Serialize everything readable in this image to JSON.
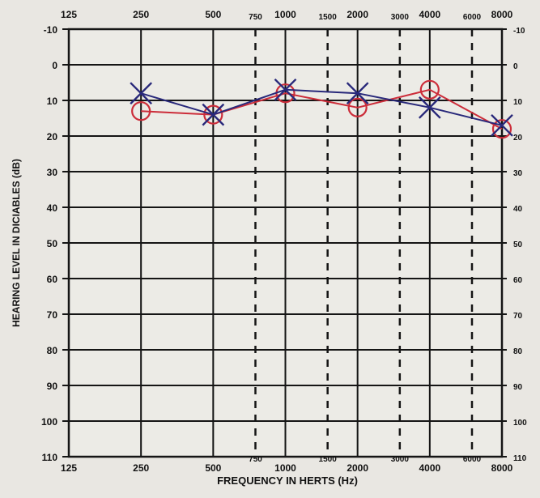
{
  "chart_data": {
    "type": "line",
    "title": "",
    "xlabel": "FREQUENCY IN HERTS (Hz)",
    "ylabel": "HEARING LEVEL IN DICIABLES (dB)",
    "x_scale": "log",
    "y_inverted": true,
    "ylim": [
      -10,
      110
    ],
    "xlim": [
      125,
      8000
    ],
    "grid": true,
    "legend": "none",
    "x_ticks_top": [
      "125",
      "250",
      "500",
      "750",
      "1000",
      "1500",
      "2000",
      "3000",
      "4000",
      "6000",
      "8000"
    ],
    "x_ticks_bottom": [
      "125",
      "250",
      "500",
      "750",
      "1000",
      "1500",
      "2000",
      "3000",
      "4000",
      "6000",
      "8000"
    ],
    "x_tick_values": [
      125,
      250,
      500,
      750,
      1000,
      1500,
      2000,
      3000,
      4000,
      6000,
      8000
    ],
    "x_dashed": [
      750,
      1500,
      3000,
      6000
    ],
    "y_ticks_left": [
      "-10",
      "0",
      "10",
      "20",
      "30",
      "40",
      "50",
      "60",
      "70",
      "80",
      "90",
      "100",
      "110"
    ],
    "y_ticks_right": [
      "-10",
      "0",
      "10",
      "20",
      "30",
      "40",
      "50",
      "60",
      "70",
      "80",
      "90",
      "100",
      "110"
    ],
    "y_tick_values": [
      -10,
      0,
      10,
      20,
      30,
      40,
      50,
      60,
      70,
      80,
      90,
      100,
      110
    ],
    "colors": {
      "red": "#cc2d3a",
      "blue": "#28287a",
      "grid": "#151515"
    },
    "series": [
      {
        "marker": "circle",
        "color": "#cc2d3a",
        "x": [
          250,
          500,
          1000,
          2000,
          4000,
          8000
        ],
        "values": [
          13,
          14,
          8,
          12,
          7,
          18
        ]
      },
      {
        "marker": "cross",
        "color": "#28287a",
        "x": [
          250,
          500,
          1000,
          2000,
          4000,
          8000
        ],
        "values": [
          8,
          14,
          7,
          8,
          12,
          17
        ]
      }
    ]
  }
}
